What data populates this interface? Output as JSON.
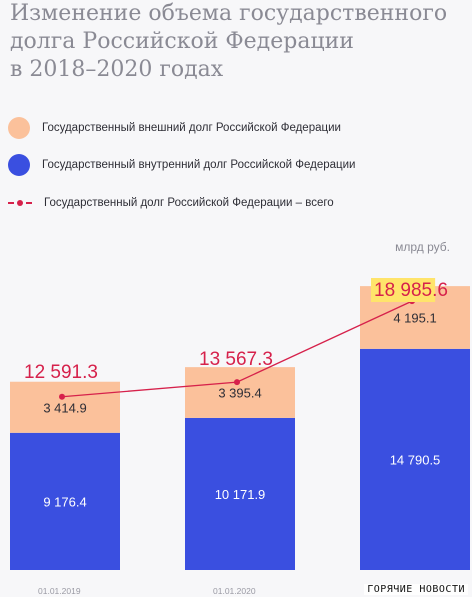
{
  "title": "Изменение объема государственного\nдолга Российской Федерации\nв 2018–2020 годах",
  "legend": [
    {
      "label": "Государственный внешний долг Российской Федерации",
      "icon": "peach-circle-swatch"
    },
    {
      "label": "Государственный внутренний долг Российской Федерации",
      "icon": "blue-circle-swatch"
    },
    {
      "label": "Государственный долг Российской Федерации – всего",
      "icon": "red-dashed-line-marker"
    }
  ],
  "unit_label": "млрд руб.",
  "watermark": "ГОРЯЧИЕ НОВОСТИ",
  "colors": {
    "external": "#fbc19b",
    "internal": "#3a4fe0",
    "total": "#d6214b",
    "highlight": "#ffe46b"
  },
  "chart_data": {
    "type": "bar",
    "stacked": true,
    "categories": [
      "01.01.2019",
      "01.01.2020",
      ""
    ],
    "series": [
      {
        "name": "Государственный внутренний долг Российской Федерации",
        "values": [
          9176.4,
          10171.9,
          14790.5
        ],
        "labels": [
          "9 176.4",
          "10 171.9",
          "14 790.5"
        ]
      },
      {
        "name": "Государственный внешний долг Российской Федерации",
        "values": [
          3414.9,
          3395.4,
          4195.1
        ],
        "labels": [
          "3 414.9",
          "3 395.4",
          "4 195.1"
        ]
      }
    ],
    "total": {
      "name": "Государственный долг Российской Федерации – всего",
      "values": [
        12591.3,
        13567.3,
        18985.6
      ],
      "labels": [
        "12 591.3",
        "13 567.3",
        "18 985.6"
      ],
      "highlighted_part": "18 985"
    },
    "ylim": [
      0,
      21000
    ],
    "grid": false
  }
}
